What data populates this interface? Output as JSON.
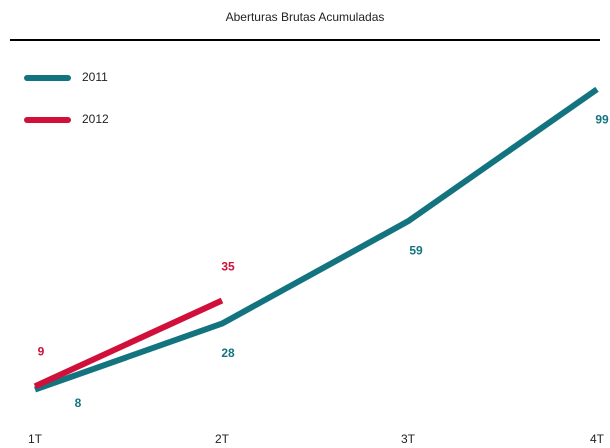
{
  "chart_data": {
    "type": "line",
    "title": "Aberturas Brutas Acumuladas",
    "categories": [
      "1T",
      "2T",
      "3T",
      "4T"
    ],
    "series": [
      {
        "name": "2011",
        "color": "#137480",
        "values": [
          8,
          28,
          59,
          99
        ]
      },
      {
        "name": "2012",
        "color": "#d0103a",
        "values": [
          9,
          35,
          null,
          null
        ]
      }
    ],
    "ylim": [
      0,
      100
    ],
    "legend": "upper left"
  }
}
